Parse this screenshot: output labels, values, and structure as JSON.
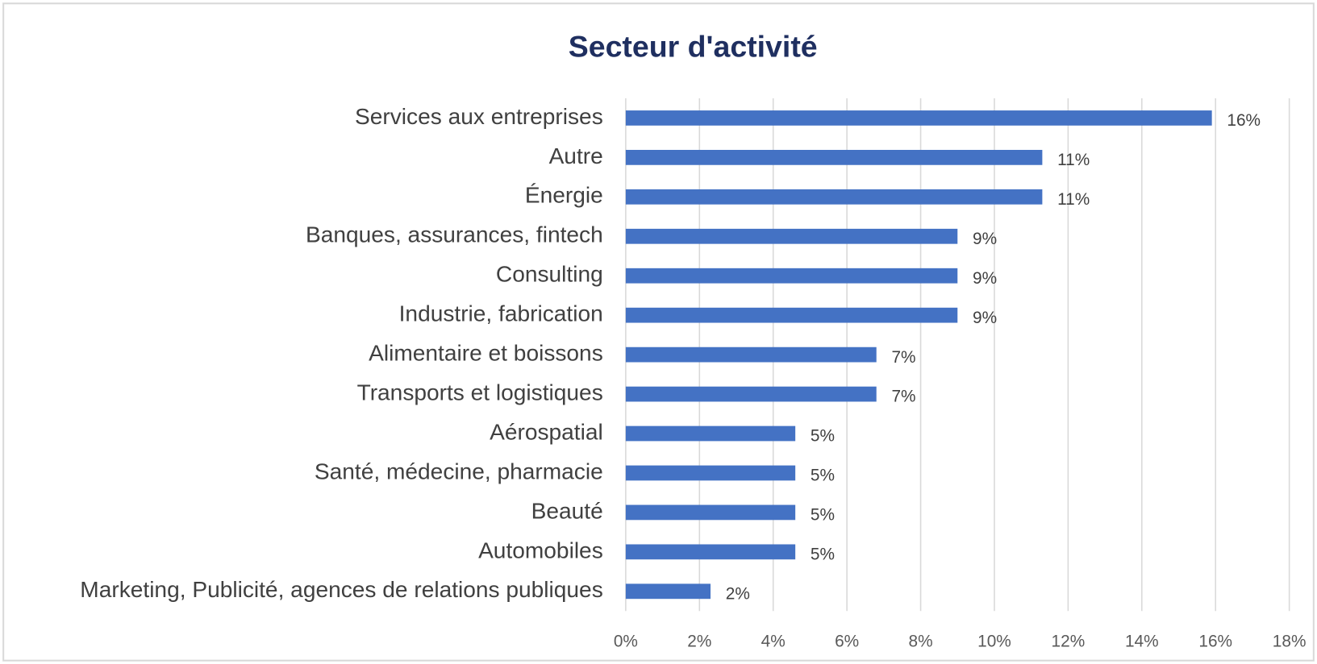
{
  "chart_data": {
    "type": "bar",
    "orientation": "horizontal",
    "title": "Secteur d'activité",
    "categories": [
      "Services aux entreprises",
      "Autre",
      "Énergie",
      "Banques, assurances, fintech",
      "Consulting",
      "Industrie, fabrication",
      "Alimentaire et boissons",
      "Transports et logistiques",
      "Aérospatial",
      "Santé, médecine, pharmacie",
      "Beauté",
      "Automobiles",
      "Marketing, Publicité, agences de relations publiques"
    ],
    "values": [
      15.9,
      11.3,
      11.3,
      9.0,
      9.0,
      9.0,
      6.8,
      6.8,
      4.6,
      4.6,
      4.6,
      4.6,
      2.3
    ],
    "value_labels": [
      "16%",
      "11%",
      "11%",
      "9%",
      "9%",
      "9%",
      "7%",
      "7%",
      "5%",
      "5%",
      "5%",
      "5%",
      "2%"
    ],
    "color": "#4472c4",
    "xlim": [
      0,
      18
    ],
    "xticks": [
      {
        "value": 0,
        "label": "0%"
      },
      {
        "value": 2,
        "label": "2%"
      },
      {
        "value": 4,
        "label": "4%"
      },
      {
        "value": 6,
        "label": "6%"
      },
      {
        "value": 8,
        "label": "8%"
      },
      {
        "value": 10,
        "label": "10%"
      },
      {
        "value": 12,
        "label": "12%"
      },
      {
        "value": 14,
        "label": "14%"
      },
      {
        "value": 16,
        "label": "16%"
      },
      {
        "value": 18,
        "label": "18%"
      }
    ],
    "grid": true
  }
}
